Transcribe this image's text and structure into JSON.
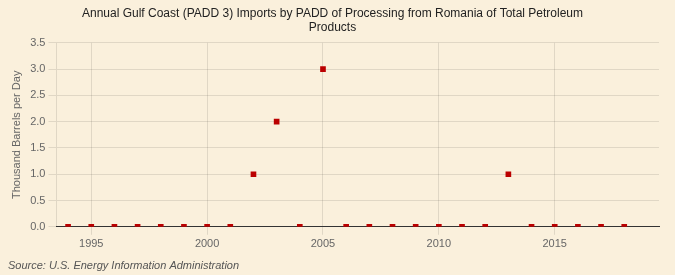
{
  "chart_data": {
    "type": "scatter",
    "title": "Annual Gulf Coast (PADD 3) Imports by PADD of Processing from Romania of Total Petroleum\nProducts",
    "ylabel": "Thousand Barrels per Day",
    "annotations": [
      "Source: U.S. Energy Information Administration"
    ],
    "x": [
      1994,
      1995,
      1996,
      1997,
      1998,
      1999,
      2000,
      2001,
      2002,
      2003,
      2004,
      2005,
      2006,
      2007,
      2008,
      2009,
      2010,
      2011,
      2012,
      2013,
      2014,
      2015,
      2016,
      2017,
      2018
    ],
    "values": [
      0.0,
      0.0,
      0.0,
      0.0,
      0.0,
      0.0,
      0.0,
      0.0,
      1.0,
      2.0,
      0.0,
      3.0,
      0.0,
      0.0,
      0.0,
      0.0,
      0.0,
      0.0,
      0.0,
      1.0,
      0.0,
      0.0,
      0.0,
      0.0,
      0.0
    ],
    "color": "#bb0000",
    "marker": "square",
    "xlim": [
      1993.5,
      2019.5
    ],
    "ylim": [
      0.0,
      3.5
    ],
    "xticks": [
      1995,
      2000,
      2005,
      2010,
      2015
    ],
    "yticks": [
      {
        "value": 0.0,
        "label": "0.0"
      },
      0.5,
      {
        "value": 1.0,
        "label": "1.0"
      },
      1.5,
      {
        "value": 2.0,
        "label": "2.0"
      },
      2.5,
      {
        "value": 3.0,
        "label": "3.0"
      },
      3.5
    ],
    "grid": true
  }
}
